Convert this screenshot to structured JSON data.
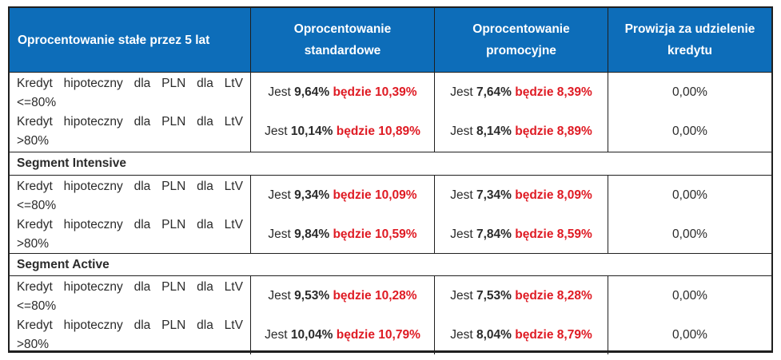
{
  "colors": {
    "header_bg": "#0d6db9",
    "highlight_red": "#df1b24",
    "text": "#2b2b2b",
    "border": "#1f1f1f",
    "header_text": "#ffffff"
  },
  "labels": {
    "current": "Jest",
    "future": "będzie"
  },
  "header": {
    "col1": "Oprocentowanie stałe przez 5 lat",
    "col2": "Oprocentowanie standardowe",
    "col3": "Oprocentowanie promocyjne",
    "col4": "Prowizja za udzielenie kredytu"
  },
  "sections": [
    {
      "rows": [
        {
          "label_main": "Kredyt hipoteczny dla PLN dla LtV",
          "label_sub": "<=80%",
          "standard": {
            "now": "9,64%",
            "later": "10,39%"
          },
          "promo": {
            "now": "7,64%",
            "later": "8,39%"
          },
          "fee": "0,00%"
        },
        {
          "label_main": "Kredyt hipoteczny dla PLN dla LtV",
          "label_sub": ">80%",
          "standard": {
            "now": "10,14%",
            "later": "10,89%"
          },
          "promo": {
            "now": "8,14%",
            "later": "8,89%"
          },
          "fee": "0,00%"
        }
      ]
    },
    {
      "title": "Segment Intensive",
      "rows": [
        {
          "label_main": "Kredyt hipoteczny dla PLN dla LtV",
          "label_sub": "<=80%",
          "standard": {
            "now": "9,34%",
            "later": "10,09%"
          },
          "promo": {
            "now": "7,34%",
            "later": "8,09%"
          },
          "fee": "0,00%"
        },
        {
          "label_main": "Kredyt hipoteczny dla PLN dla LtV",
          "label_sub": ">80%",
          "standard": {
            "now": "9,84%",
            "later": "10,59%"
          },
          "promo": {
            "now": "7,84%",
            "later": "8,59%"
          },
          "fee": "0,00%"
        }
      ]
    },
    {
      "title": "Segment Active",
      "rows": [
        {
          "label_main": "Kredyt hipoteczny dla PLN dla LtV",
          "label_sub": "<=80%",
          "standard": {
            "now": "9,53%",
            "later": "10,28%"
          },
          "promo": {
            "now": "7,53%",
            "later": "8,28%"
          },
          "fee": "0,00%"
        },
        {
          "label_main": "Kredyt hipoteczny dla PLN dla LtV",
          "label_sub": ">80%",
          "standard": {
            "now": "10,04%",
            "later": "10,79%"
          },
          "promo": {
            "now": "8,04%",
            "later": "8,79%"
          },
          "fee": "0,00%"
        }
      ]
    }
  ]
}
